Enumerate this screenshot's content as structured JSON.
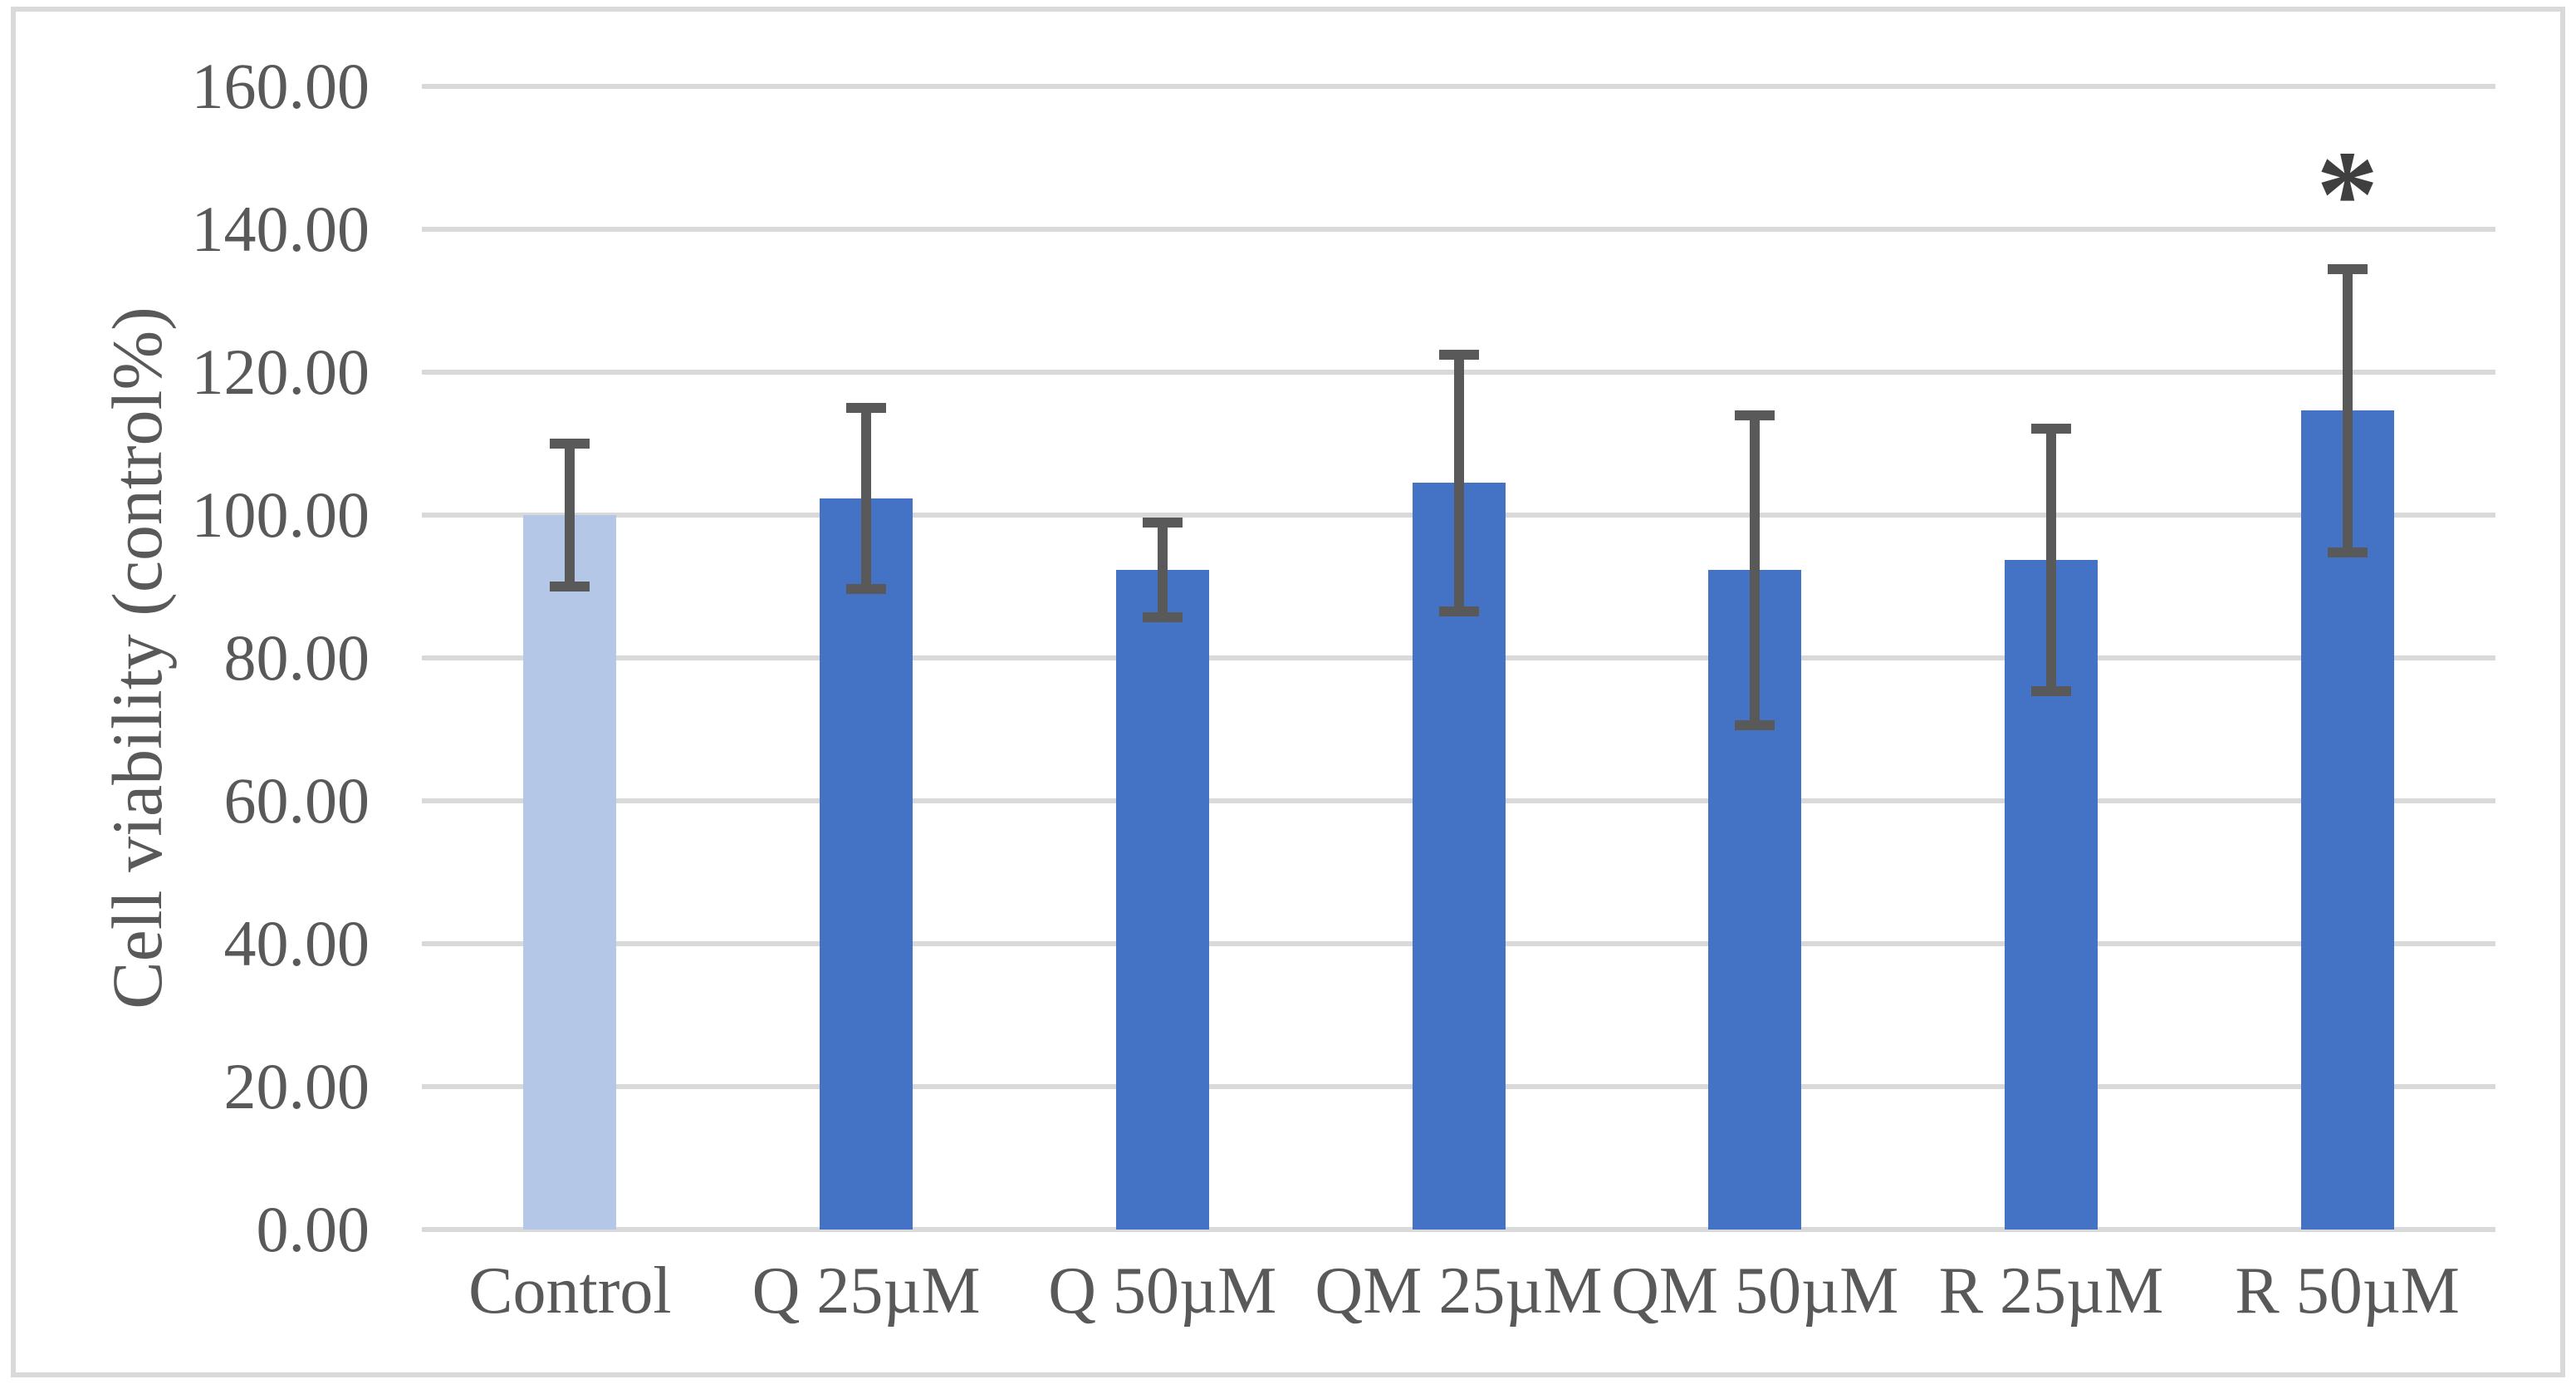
{
  "chart_data": {
    "type": "bar",
    "title": "",
    "categories": [
      "Control",
      "Q 25µM",
      "Q 50µM",
      "QM 25µM",
      "QM 50µM",
      "R 25µM",
      "R 50µM"
    ],
    "values": [
      100.0,
      102.3,
      92.3,
      104.5,
      92.3,
      93.7,
      114.6
    ],
    "error_bars": [
      10.0,
      12.7,
      6.6,
      18.0,
      21.7,
      18.4,
      19.8
    ],
    "xlabel": "",
    "ylabel": "Cell viability (control%)",
    "ylim": [
      0,
      160
    ],
    "ytick_step": 20,
    "ytick_labels": [
      "160.00",
      "140.00",
      "120.00",
      "100.00",
      "80.00",
      "60.00",
      "40.00",
      "20.00",
      "0.00"
    ],
    "grid": "horizontal-only",
    "legend_position": "none",
    "annotations": [
      {
        "category": "R 50µM",
        "symbol": "*"
      }
    ]
  },
  "colors": {
    "control_bar_fill": "#b4c7e7",
    "treatment_bar_fill": "#4472c4",
    "error_bar": "#595959",
    "gridline": "#d9d9d9",
    "chart_border": "#d9d9d9",
    "axis_text": "#595959",
    "annotation_text": "#3f3f3f",
    "background": "#ffffff"
  }
}
